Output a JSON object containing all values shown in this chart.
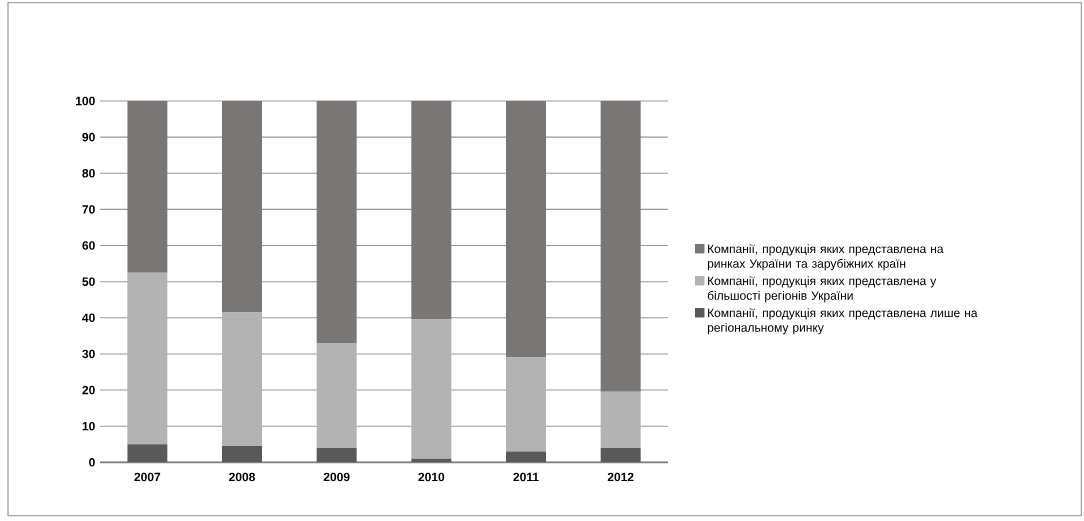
{
  "chart_data": {
    "type": "bar",
    "stacked": true,
    "categories": [
      "2007",
      "2008",
      "2009",
      "2010",
      "2011",
      "2012"
    ],
    "series": [
      {
        "name": "Компанії, продукція яких представлена лише на регіональному ринку",
        "color": "#595959",
        "values": [
          5,
          4.5,
          4,
          1,
          3,
          4
        ]
      },
      {
        "name": "Компанії, продукція яких представлена у більшості регіонів України",
        "color": "#b3b3b3",
        "values": [
          47.5,
          37,
          29,
          38.5,
          26,
          15.5
        ]
      },
      {
        "name": "Компанії, продукція яких представлена на ринках України та зарубіжних країн",
        "color": "#797676",
        "values": [
          47.5,
          58.5,
          67,
          60.5,
          71,
          80.5
        ]
      }
    ],
    "ylim": [
      0,
      100
    ],
    "yticks": [
      0,
      10,
      20,
      30,
      40,
      50,
      60,
      70,
      80,
      90,
      100
    ],
    "grid": "y",
    "legend": "right"
  }
}
